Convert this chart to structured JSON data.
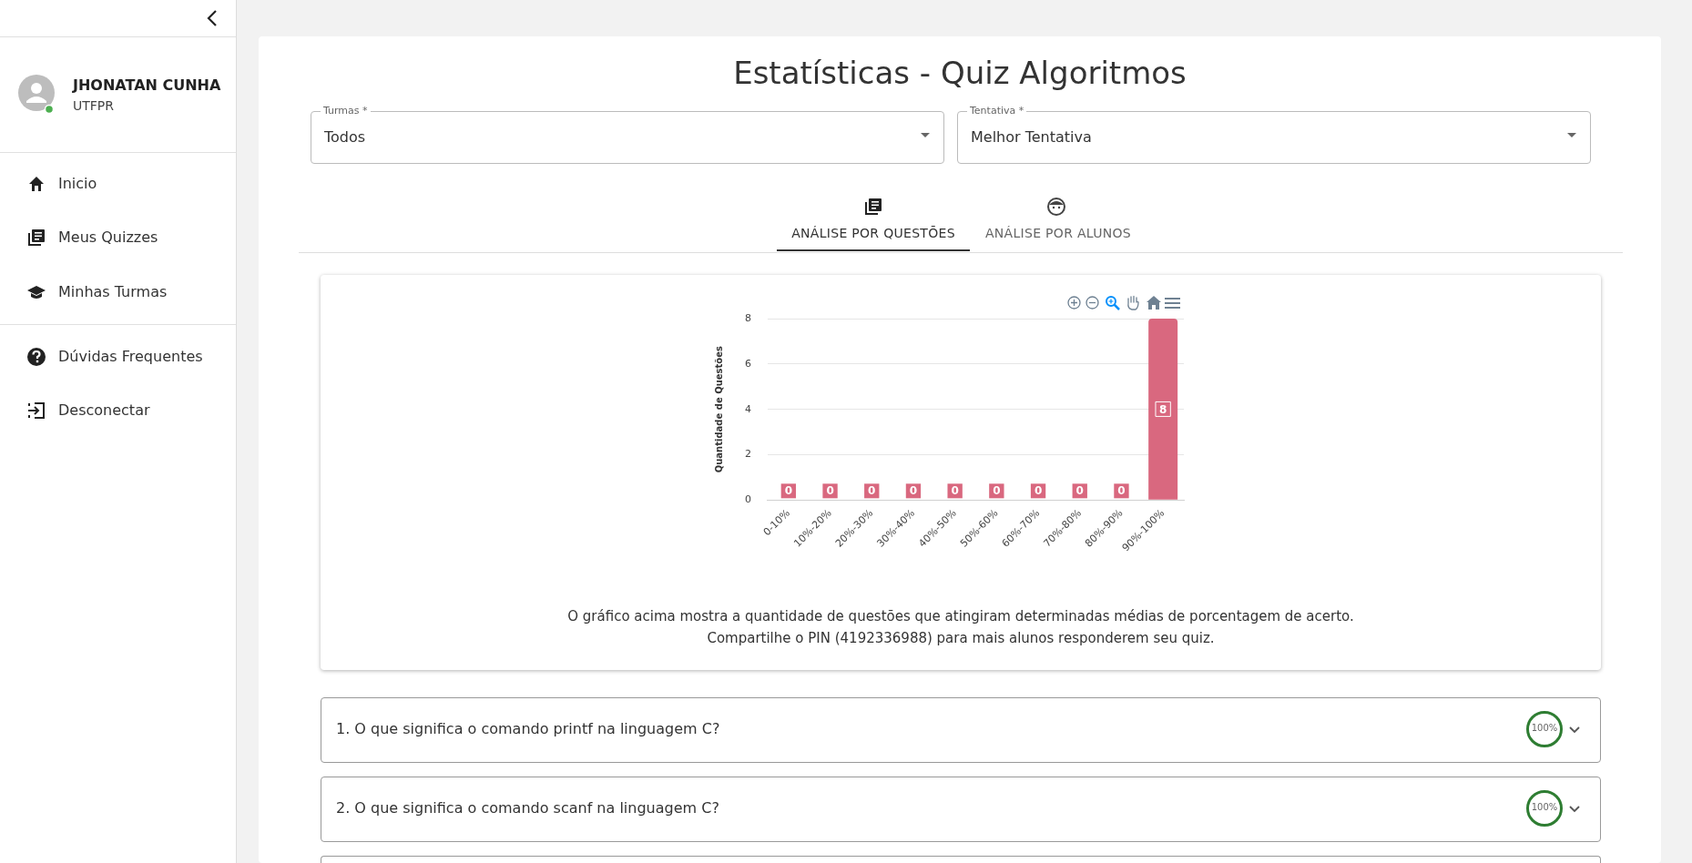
{
  "chart_data": {
    "type": "bar",
    "title": "Estatísticas - Quiz Algoritmos",
    "ylabel": "Quantidade de Questões",
    "categories": [
      "0-10%",
      "10%-20%",
      "20%-30%",
      "30%-40%",
      "40%-50%",
      "50%-60%",
      "60%-70%",
      "70%-80%",
      "80%-90%",
      "90%-100%"
    ],
    "values": [
      0,
      0,
      0,
      0,
      0,
      0,
      0,
      0,
      0,
      8
    ],
    "color": "#d9687f",
    "ylim": [
      0,
      8
    ],
    "yticks": [
      0,
      2,
      4,
      6,
      8
    ],
    "grid": "y",
    "data_labels": true,
    "legend": false,
    "annotations": [
      "O gráfico acima mostra a quantidade de questões que atingiram determinadas médias de porcentagem de acerto.",
      "Compartilhe o PIN (4192336988) para mais alunos responderem seu quiz.",
      "JHONATAN CUNHA",
      "UTFPR",
      "Inicio",
      "Meus Quizzes",
      "Minhas Turmas",
      "Dúvidas Frequentes",
      "Desconectar",
      "Turmas *",
      "Todos",
      "Tentativa *",
      "Melhor Tentativa",
      "ANÁLISE POR QUESTÕES",
      "ANÁLISE POR ALUNOS",
      "1. O que significa o comando printf na linguagem C?",
      "100%",
      "2. O que significa o comando scanf na linguagem C?",
      "100%"
    ]
  }
}
